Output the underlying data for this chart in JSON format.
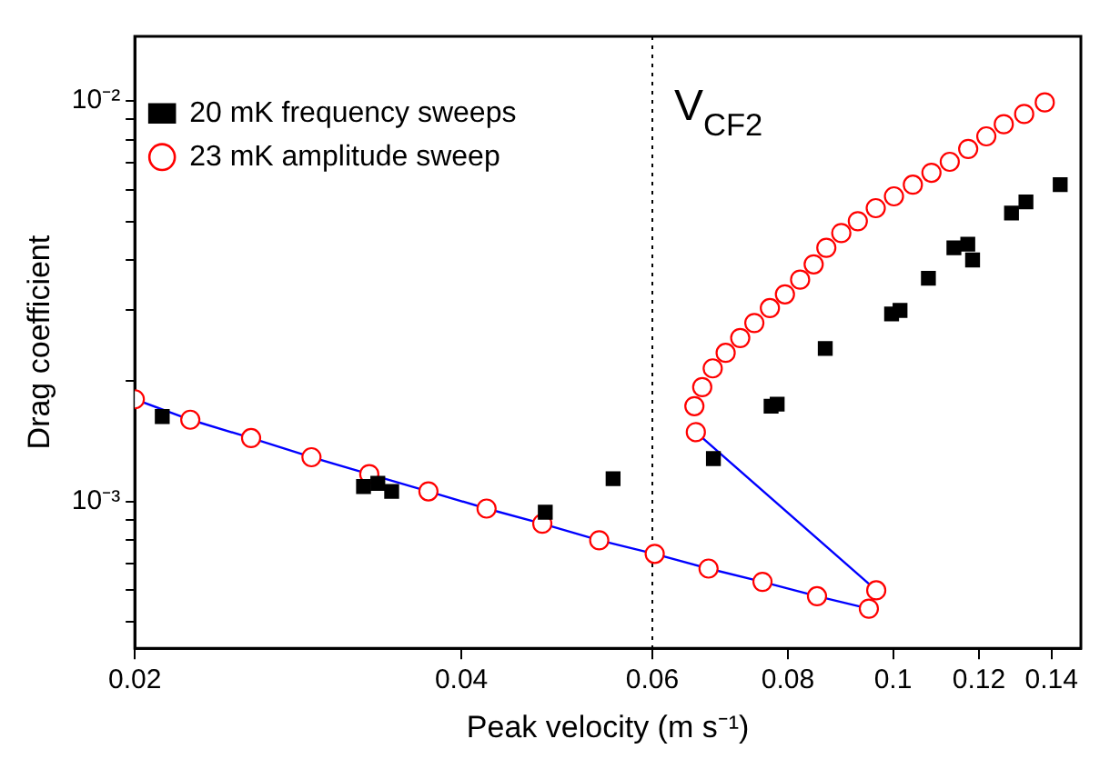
{
  "chart_data": {
    "type": "scatter",
    "xlabel": "Peak velocity (m s⁻¹)",
    "ylabel": "Drag coefficient",
    "log": "xy",
    "grid": false,
    "legend": "top left",
    "xlim": [
      0.02,
      0.149
    ],
    "xticks": [
      0.02,
      0.04,
      0.06,
      0.08,
      0.1,
      0.12,
      0.14
    ],
    "ylim": [
      0.00043,
      0.0145
    ],
    "yticks": [
      {
        "value": 0.0005,
        "label": null
      },
      {
        "value": 0.0006,
        "label": null
      },
      {
        "value": 0.0007,
        "label": null
      },
      {
        "value": 0.0008,
        "label": null
      },
      {
        "value": 0.0009,
        "label": null
      },
      {
        "value": 0.001,
        "label": "10⁻³"
      },
      {
        "value": 0.002,
        "label": null
      },
      {
        "value": 0.003,
        "label": null
      },
      {
        "value": 0.004,
        "label": null
      },
      {
        "value": 0.005,
        "label": null
      },
      {
        "value": 0.006,
        "label": null
      },
      {
        "value": 0.007,
        "label": null
      },
      {
        "value": 0.008,
        "label": null
      },
      {
        "value": 0.009,
        "label": null
      },
      {
        "value": 0.01,
        "label": "10⁻²"
      }
    ],
    "ref_lines": [
      {
        "axis": "x",
        "value": 0.06,
        "label": "V$_{CF2}$",
        "color": "#000000",
        "line_style": "dotted"
      }
    ],
    "series": [
      {
        "name": "20 mK frequency sweeps",
        "marker": "square",
        "color": "#000000",
        "x": [
          0.0212,
          0.0325,
          0.0335,
          0.0345,
          0.0478,
          0.0552,
          0.0683,
          0.0772,
          0.0782,
          0.0866,
          0.0997,
          0.1015,
          0.1078,
          0.1138,
          0.1172,
          0.1184,
          0.1286,
          0.1326,
          0.1426
        ],
        "values": [
          0.00163,
          0.00109,
          0.00111,
          0.00106,
          0.00094,
          0.00114,
          0.00128,
          0.00173,
          0.00175,
          0.00241,
          0.00294,
          0.003,
          0.00361,
          0.0043,
          0.00439,
          0.00401,
          0.00525,
          0.0056,
          0.00618
        ]
      },
      {
        "name": "23 mK amplitude sweep",
        "type": "line",
        "marker": "circle",
        "line_style": "solid",
        "color": "#0000ff",
        "colors": [
          "#ff0000",
          "#ff0000",
          "#ff0000",
          "#ff0000",
          "#ff0000",
          "#ff0000",
          "#ff0000",
          "#ff0000",
          "#ff0000",
          "#ff0000",
          "#ff0000",
          "#ff0000",
          "#ff0000",
          "#ff0000",
          "#ff0000",
          "#ff0000"
        ],
        "x": [
          0.02,
          0.0225,
          0.0256,
          0.0291,
          0.0329,
          0.0373,
          0.0422,
          0.0475,
          0.0536,
          0.0603,
          0.0676,
          0.0758,
          0.0851,
          0.095,
          0.0965,
          0.0658
        ],
        "values": [
          0.0018,
          0.0016,
          0.00144,
          0.00129,
          0.00117,
          0.00106,
          0.00096,
          0.00088,
          0.0008,
          0.00074,
          0.00068,
          0.00063,
          0.00058,
          0.00054,
          0.0006,
          0.00149
        ]
      },
      {
        "marker": "circle",
        "color": "#ff0000",
        "x": [
          0.0656,
          0.0667,
          0.0682,
          0.0701,
          0.0723,
          0.0745,
          0.077,
          0.0795,
          0.0821,
          0.0845,
          0.0868,
          0.0896,
          0.0928,
          0.0964,
          0.1002,
          0.1043,
          0.1085,
          0.1128,
          0.1173,
          0.1219,
          0.1265,
          0.1321,
          0.138
        ],
        "values": [
          0.00173,
          0.00193,
          0.00215,
          0.00235,
          0.00256,
          0.00279,
          0.00304,
          0.00329,
          0.00358,
          0.00391,
          0.0043,
          0.00468,
          0.00501,
          0.0054,
          0.00578,
          0.00618,
          0.00662,
          0.00705,
          0.00759,
          0.00816,
          0.00875,
          0.00928,
          0.00992
        ]
      }
    ]
  }
}
